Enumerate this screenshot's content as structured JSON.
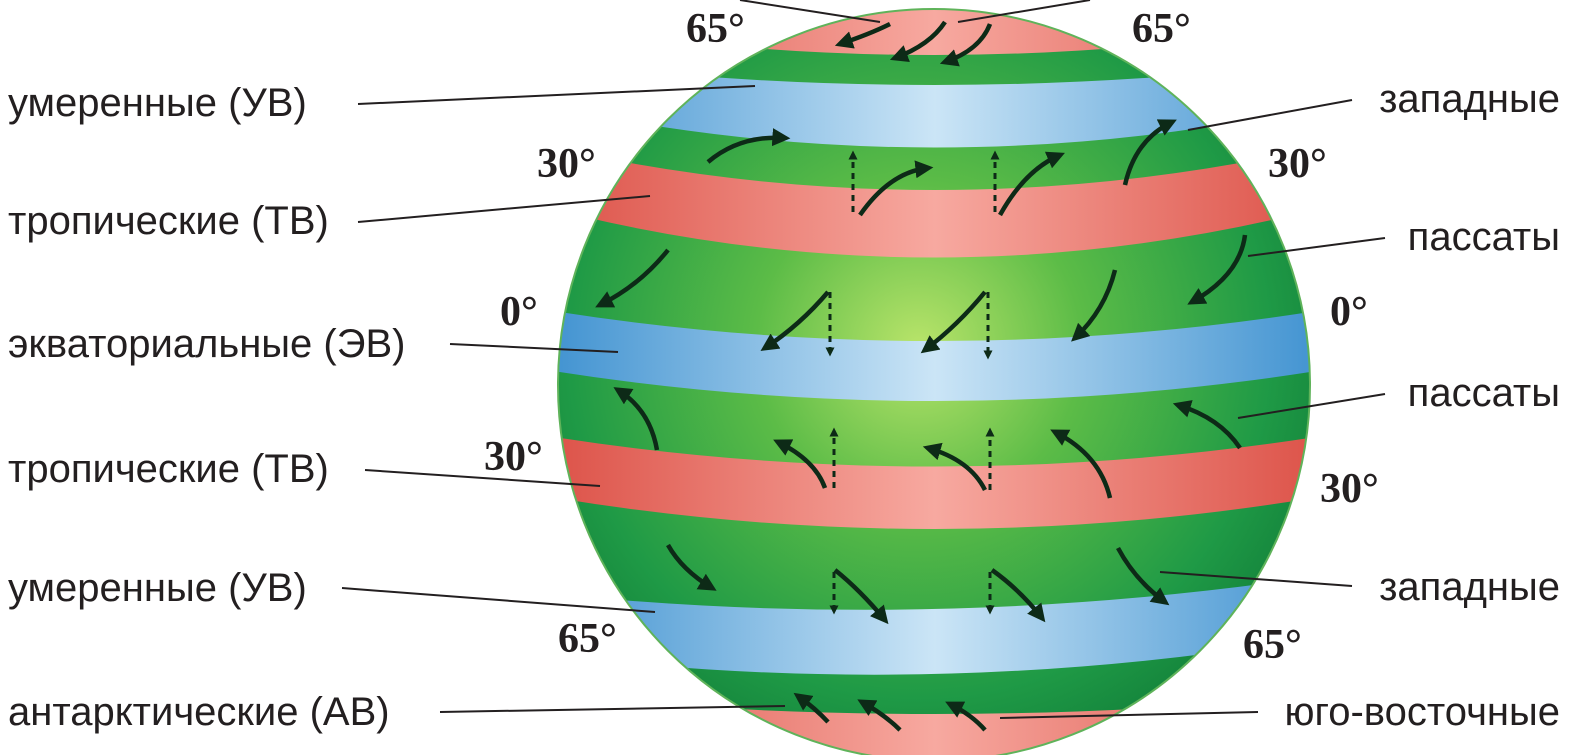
{
  "title": "",
  "colors": {
    "green": "#1f9a46",
    "red": "#e05a4b",
    "blue": "#3f94d4",
    "arrow": "#0d2a17"
  },
  "bands": [
    {
      "zone": "arctic",
      "color": "red"
    },
    {
      "zone": "temperate",
      "color": "blue"
    },
    {
      "zone": "tropical",
      "color": "red"
    },
    {
      "zone": "equatorial",
      "color": "blue"
    },
    {
      "zone": "tropical",
      "color": "red"
    },
    {
      "zone": "temperate",
      "color": "blue"
    },
    {
      "zone": "antarctic",
      "color": "red"
    }
  ],
  "left_labels": [
    "умеренные (УВ)",
    "тропические (ТВ)",
    "экваториальные (ЭВ)",
    "тропические (ТВ)",
    "умеренные (УВ)",
    "антарктические (АВ)"
  ],
  "right_labels": [
    "западные",
    "пассаты",
    "пассаты",
    "западные",
    "юго-восточные"
  ],
  "latitudes": {
    "n65": "65°",
    "n30": "30°",
    "eq": "0°",
    "s30": "30°",
    "s65": "65°"
  }
}
